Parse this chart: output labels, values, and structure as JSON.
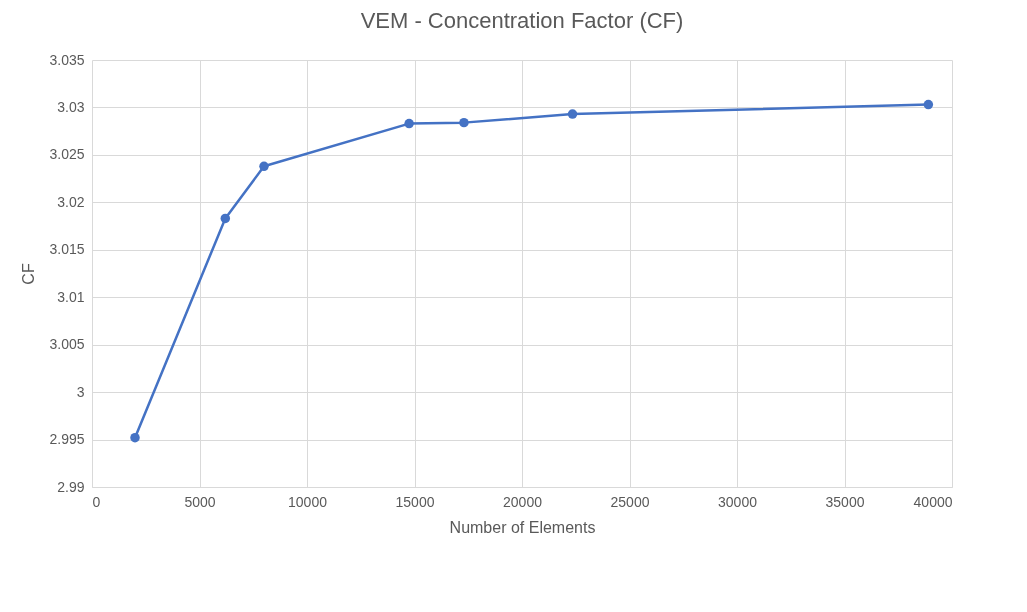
{
  "chart_data": {
    "type": "line",
    "title": "VEM - Concentration Factor (CF)",
    "xlabel": "Number of Elements",
    "ylabel": "CF",
    "x": [
      2000,
      6200,
      8000,
      14750,
      17300,
      22350,
      38900
    ],
    "series": [
      {
        "color": "#4472c4",
        "values": [
          2.9952,
          3.0183,
          3.0238,
          3.0283,
          3.0284,
          3.0293,
          3.0303
        ]
      }
    ],
    "xlim": [
      0,
      40000
    ],
    "xticks": [
      0,
      5000,
      10000,
      15000,
      20000,
      25000,
      30000,
      35000,
      40000
    ],
    "ylim": [
      2.99,
      3.035
    ],
    "yticks": [
      2.99,
      2.995,
      3,
      3.005,
      3.01,
      3.015,
      3.02,
      3.025,
      3.03,
      3.035
    ],
    "grid": true,
    "marker": "circle",
    "line_style": "solid",
    "legend": false
  }
}
